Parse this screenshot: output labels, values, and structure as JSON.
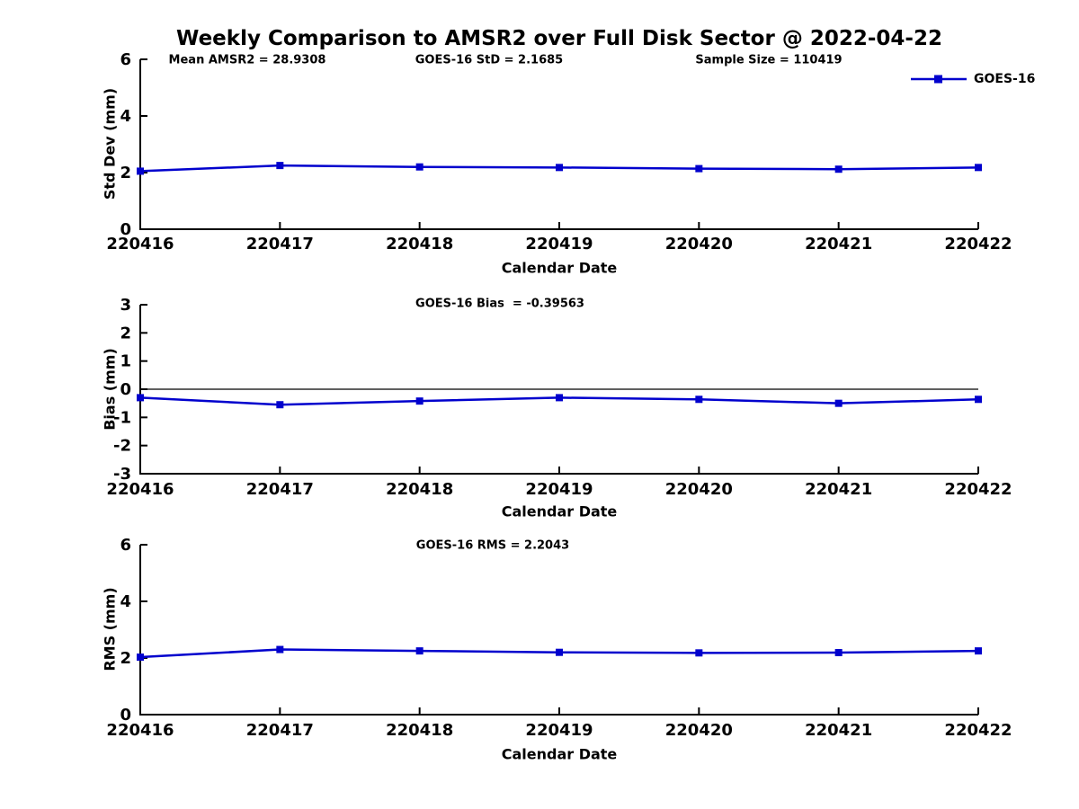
{
  "title": "Weekly Comparison to AMSR2 over Full Disk Sector @ 2022-04-22",
  "legend": {
    "label": "GOES-16",
    "color": "#0000cd",
    "position": "top-right"
  },
  "chart_data": [
    {
      "type": "line",
      "panel": "std-dev",
      "annotations": [
        "Mean AMSR2 = 28.9308",
        "GOES-16 StD = 2.1685",
        "Sample Size = 110419"
      ],
      "categories": [
        "220416",
        "220417",
        "220418",
        "220419",
        "220420",
        "220421",
        "220422"
      ],
      "series": [
        {
          "name": "GOES-16",
          "color": "#0000cd",
          "marker": "square",
          "values": [
            2.05,
            2.25,
            2.2,
            2.18,
            2.14,
            2.12,
            2.18
          ]
        }
      ],
      "xlabel": "Calendar Date",
      "ylabel": "Std Dev (mm)",
      "ylim": [
        0,
        6
      ],
      "yticks": [
        0,
        2,
        4,
        6
      ],
      "zero_line": false,
      "grid": false,
      "legend_position": "top-right"
    },
    {
      "type": "line",
      "panel": "bias",
      "annotations": [
        "GOES-16 Bias  = -0.39563"
      ],
      "categories": [
        "220416",
        "220417",
        "220418",
        "220419",
        "220420",
        "220421",
        "220422"
      ],
      "series": [
        {
          "name": "GOES-16",
          "color": "#0000cd",
          "marker": "square",
          "values": [
            -0.3,
            -0.55,
            -0.42,
            -0.3,
            -0.36,
            -0.5,
            -0.36
          ]
        }
      ],
      "xlabel": "Calendar Date",
      "ylabel": "Bias (mm)",
      "ylim": [
        -3,
        3
      ],
      "yticks": [
        -3,
        -2,
        -1,
        0,
        1,
        2,
        3
      ],
      "zero_line": true,
      "grid": false,
      "legend_position": "none"
    },
    {
      "type": "line",
      "panel": "rms",
      "annotations": [
        "GOES-16 RMS = 2.2043"
      ],
      "categories": [
        "220416",
        "220417",
        "220418",
        "220419",
        "220420",
        "220421",
        "220422"
      ],
      "series": [
        {
          "name": "GOES-16",
          "color": "#0000cd",
          "marker": "square",
          "values": [
            2.03,
            2.3,
            2.25,
            2.2,
            2.18,
            2.19,
            2.25
          ]
        }
      ],
      "xlabel": "Calendar Date",
      "ylabel": "RMS (mm)",
      "ylim": [
        0,
        6
      ],
      "yticks": [
        0,
        2,
        4,
        6
      ],
      "zero_line": false,
      "grid": false,
      "legend_position": "none"
    }
  ]
}
